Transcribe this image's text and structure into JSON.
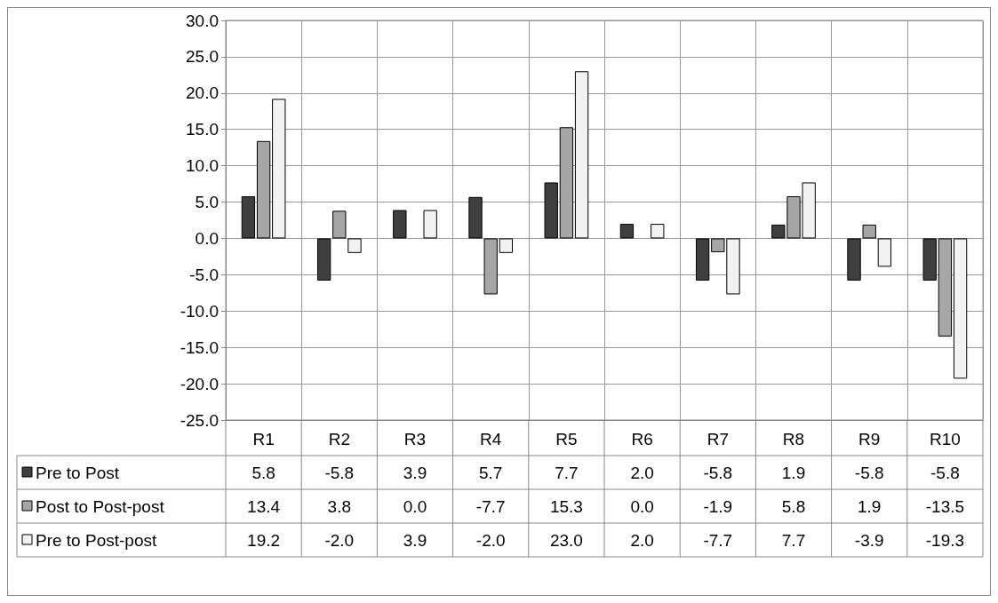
{
  "chart_data": {
    "type": "bar",
    "categories": [
      "R1",
      "R2",
      "R3",
      "R4",
      "R5",
      "R6",
      "R7",
      "R8",
      "R9",
      "R10"
    ],
    "series": [
      {
        "name": "Pre to Post",
        "color": "#3f3f3f",
        "values": [
          5.8,
          -5.8,
          3.9,
          5.7,
          7.7,
          2.0,
          -5.8,
          1.9,
          -5.8,
          -5.8
        ],
        "value_labels": [
          "5.8",
          "-5.8",
          "3.9",
          "5.7",
          "7.7",
          "2.0",
          "-5.8",
          "1.9",
          "-5.8",
          "-5.8"
        ]
      },
      {
        "name": "Post to Post-post",
        "color": "#a6a6a6",
        "values": [
          13.4,
          3.8,
          0.0,
          -7.7,
          15.3,
          0.0,
          -1.9,
          5.8,
          1.9,
          -13.5
        ],
        "value_labels": [
          "13.4",
          "3.8",
          "0.0",
          "-7.7",
          "15.3",
          "0.0",
          "-1.9",
          "5.8",
          "1.9",
          "-13.5"
        ]
      },
      {
        "name": "Pre to Post-post",
        "color": "#f2f2f2",
        "values": [
          19.2,
          -2.0,
          3.9,
          -2.0,
          23.0,
          2.0,
          -7.7,
          7.7,
          -3.9,
          -19.3
        ],
        "value_labels": [
          "19.2",
          "-2.0",
          "3.9",
          "-2.0",
          "23.0",
          "2.0",
          "-7.7",
          "7.7",
          "-3.9",
          "-19.3"
        ]
      }
    ],
    "ylim": [
      -25,
      30
    ],
    "yticks": [
      {
        "value": -25,
        "label": "-25.0"
      },
      {
        "value": -20,
        "label": "-20.0"
      },
      {
        "value": -15,
        "label": "-15.0"
      },
      {
        "value": -10,
        "label": "-10.0"
      },
      {
        "value": -5,
        "label": "-5.0"
      },
      {
        "value": 0,
        "label": "0.0"
      },
      {
        "value": 5,
        "label": "5.0"
      },
      {
        "value": 10,
        "label": "10.0"
      },
      {
        "value": 15,
        "label": "15.0"
      },
      {
        "value": 20,
        "label": "20.0"
      },
      {
        "value": 25,
        "label": "25.0"
      },
      {
        "value": 30,
        "label": "30.0"
      }
    ],
    "grid": true,
    "legend": "bottom"
  }
}
